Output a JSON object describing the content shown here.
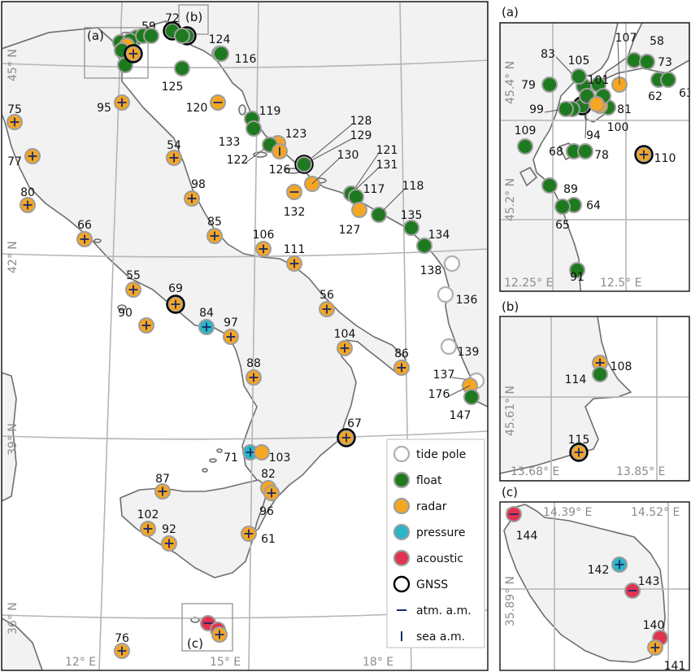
{
  "colors": {
    "tide_pole": "#ffffff",
    "float": "#1e7a1e",
    "radar": "#f5a623",
    "pressure": "#29b6c6",
    "acoustic": "#e0334f",
    "gnss_ring": "#000000",
    "marker_border": "#9e9e9e",
    "anomaly_mark": "#1a2a6c"
  },
  "main_map": {
    "inset_box_labels": [
      "(a)",
      "(b)",
      "(c)"
    ],
    "lat_labels": [
      "45° N",
      "42° N",
      "39° N",
      "36° N"
    ],
    "lon_labels": [
      "12° E",
      "15° E",
      "18° E"
    ],
    "stations": [
      {
        "id": "59",
        "type": "float"
      },
      {
        "id": "72",
        "type": "float",
        "gnss": true
      },
      {
        "id": "124",
        "type": "float",
        "mark": "sea"
      },
      {
        "id": "116",
        "type": "float"
      },
      {
        "id": "125",
        "type": "float"
      },
      {
        "id": "95",
        "type": "radar",
        "mark": "plus"
      },
      {
        "id": "120",
        "type": "radar",
        "mark": "atm"
      },
      {
        "id": "119",
        "type": "float"
      },
      {
        "id": "133",
        "type": "float"
      },
      {
        "id": "123",
        "type": "radar"
      },
      {
        "id": "122",
        "type": "float"
      },
      {
        "id": "126",
        "type": "radar",
        "mark": "sea"
      },
      {
        "id": "128",
        "type": "float",
        "gnss": true
      },
      {
        "id": "129",
        "type": "float"
      },
      {
        "id": "130",
        "type": "radar"
      },
      {
        "id": "132",
        "type": "radar",
        "mark": "atm"
      },
      {
        "id": "121",
        "type": "float"
      },
      {
        "id": "131",
        "type": "float"
      },
      {
        "id": "117",
        "type": "float"
      },
      {
        "id": "127",
        "type": "radar"
      },
      {
        "id": "118",
        "type": "float"
      },
      {
        "id": "135",
        "type": "float"
      },
      {
        "id": "134",
        "type": "float"
      },
      {
        "id": "138",
        "type": "tide"
      },
      {
        "id": "136",
        "type": "tide"
      },
      {
        "id": "139",
        "type": "tide"
      },
      {
        "id": "137",
        "type": "tide"
      },
      {
        "id": "176",
        "type": "radar"
      },
      {
        "id": "147",
        "type": "float"
      },
      {
        "id": "75",
        "type": "radar",
        "mark": "plus"
      },
      {
        "id": "77",
        "type": "radar",
        "mark": "plus"
      },
      {
        "id": "80",
        "type": "radar",
        "mark": "plus"
      },
      {
        "id": "54",
        "type": "radar",
        "mark": "plus"
      },
      {
        "id": "98",
        "type": "radar",
        "mark": "plus"
      },
      {
        "id": "66",
        "type": "radar",
        "mark": "plus"
      },
      {
        "id": "85",
        "type": "radar",
        "mark": "plus"
      },
      {
        "id": "106",
        "type": "radar",
        "mark": "plus"
      },
      {
        "id": "111",
        "type": "radar",
        "mark": "plus"
      },
      {
        "id": "55",
        "type": "radar",
        "mark": "plus"
      },
      {
        "id": "69",
        "type": "radar",
        "mark": "plus",
        "gnss": true
      },
      {
        "id": "90",
        "type": "radar",
        "mark": "plus"
      },
      {
        "id": "84",
        "type": "pressure",
        "mark": "plus"
      },
      {
        "id": "97",
        "type": "radar",
        "mark": "plus"
      },
      {
        "id": "56",
        "type": "radar",
        "mark": "plus"
      },
      {
        "id": "88",
        "type": "radar",
        "mark": "plus"
      },
      {
        "id": "104",
        "type": "radar",
        "mark": "plus"
      },
      {
        "id": "86",
        "type": "radar",
        "mark": "plus"
      },
      {
        "id": "67",
        "type": "radar",
        "mark": "plus",
        "gnss": true
      },
      {
        "id": "71",
        "type": "pressure",
        "mark": "plus"
      },
      {
        "id": "103",
        "type": "radar"
      },
      {
        "id": "82",
        "type": "radar"
      },
      {
        "id": "96",
        "type": "radar",
        "mark": "plus"
      },
      {
        "id": "87",
        "type": "radar",
        "mark": "plus"
      },
      {
        "id": "102",
        "type": "radar",
        "mark": "plus"
      },
      {
        "id": "92",
        "type": "radar",
        "mark": "plus"
      },
      {
        "id": "61",
        "type": "radar",
        "mark": "plus"
      },
      {
        "id": "76",
        "type": "radar",
        "mark": "plus"
      }
    ]
  },
  "legend": {
    "items": [
      {
        "label": "tide pole",
        "kind": "tide"
      },
      {
        "label": "float",
        "kind": "float"
      },
      {
        "label": "radar",
        "kind": "radar"
      },
      {
        "label": "pressure",
        "kind": "pressure"
      },
      {
        "label": "acoustic",
        "kind": "acoustic"
      },
      {
        "label": "GNSS",
        "kind": "gnss"
      },
      {
        "label": "atm. a.m.",
        "kind": "atm"
      },
      {
        "label": "sea a.m.",
        "kind": "sea"
      }
    ]
  },
  "inset_a": {
    "title": "(a)",
    "lat_labels": [
      "45.4° N",
      "45.2° N"
    ],
    "lon_labels": [
      "12.25° E",
      "12.5° E"
    ],
    "stations": [
      {
        "id": "107",
        "type": "radar"
      },
      {
        "id": "58",
        "type": "float"
      },
      {
        "id": "73",
        "type": "float"
      },
      {
        "id": "83",
        "type": "float"
      },
      {
        "id": "105",
        "type": "float"
      },
      {
        "id": "79",
        "type": "float"
      },
      {
        "id": "101",
        "type": "float"
      },
      {
        "id": "62",
        "type": "float"
      },
      {
        "id": "63",
        "type": "float"
      },
      {
        "id": "99",
        "type": "float",
        "gnss": true
      },
      {
        "id": "81",
        "type": "float"
      },
      {
        "id": "100",
        "type": "radar"
      },
      {
        "id": "94",
        "type": "float"
      },
      {
        "id": "109",
        "type": "float"
      },
      {
        "id": "68",
        "type": "float"
      },
      {
        "id": "78",
        "type": "float"
      },
      {
        "id": "110",
        "type": "radar",
        "mark": "plus",
        "gnss": true
      },
      {
        "id": "89",
        "type": "float"
      },
      {
        "id": "64",
        "type": "float"
      },
      {
        "id": "65",
        "type": "float"
      },
      {
        "id": "91",
        "type": "float"
      }
    ]
  },
  "inset_b": {
    "title": "(b)",
    "lat_labels": [
      "45.61° N"
    ],
    "lon_labels": [
      "13.68° E",
      "13.85° E"
    ],
    "stations": [
      {
        "id": "108",
        "type": "radar",
        "mark": "plus"
      },
      {
        "id": "114",
        "type": "float"
      },
      {
        "id": "115",
        "type": "radar",
        "mark": "plus",
        "gnss": true
      }
    ]
  },
  "inset_c": {
    "title": "(c)",
    "lat_labels": [
      "35.89° N"
    ],
    "lon_labels": [
      "14.39° E",
      "14.52° E"
    ],
    "stations": [
      {
        "id": "144",
        "type": "acoustic",
        "mark": "atm"
      },
      {
        "id": "142",
        "type": "pressure",
        "mark": "plus"
      },
      {
        "id": "143",
        "type": "acoustic",
        "mark": "atm"
      },
      {
        "id": "140",
        "type": "acoustic"
      },
      {
        "id": "141",
        "type": "radar",
        "mark": "plus"
      }
    ]
  }
}
